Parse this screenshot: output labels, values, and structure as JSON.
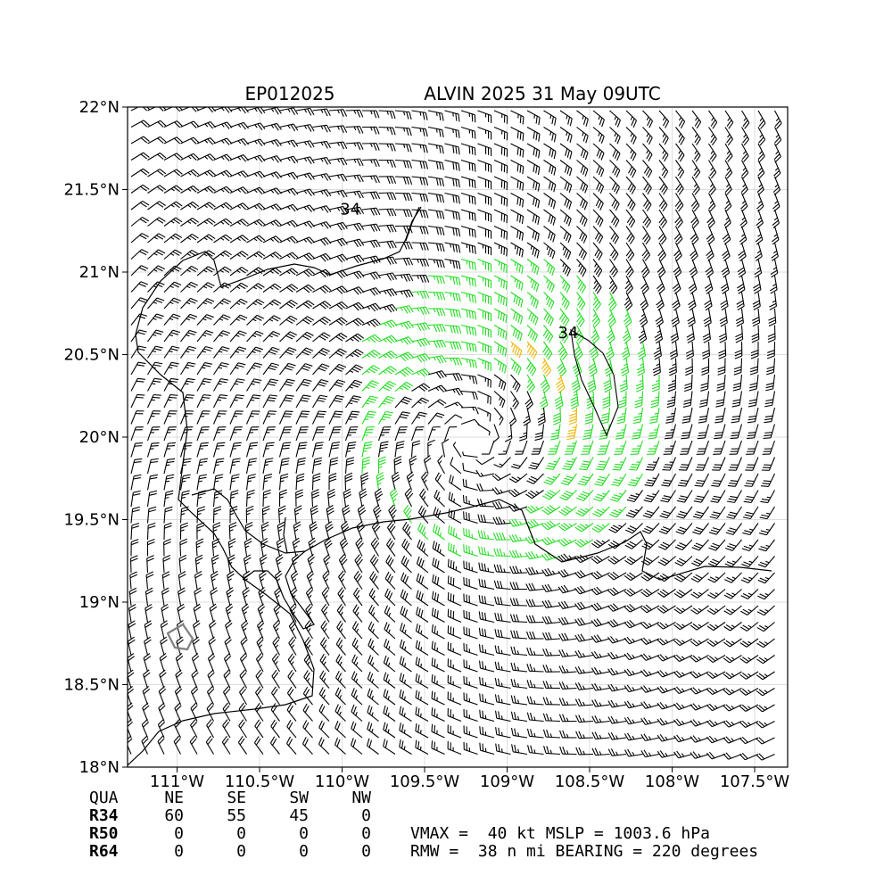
{
  "title": {
    "storm_id": "EP012025",
    "storm_info": "ALVIN 2025 31 May 09UTC"
  },
  "map": {
    "lon_range": [
      -111.3,
      -107.3
    ],
    "lat_range": [
      18.0,
      22.0
    ],
    "x_ticks": [
      {
        "lon": -111.0,
        "label": "111°W"
      },
      {
        "lon": -110.5,
        "label": "110.5°W"
      },
      {
        "lon": -110.0,
        "label": "110°W"
      },
      {
        "lon": -109.5,
        "label": "109.5°W"
      },
      {
        "lon": -109.0,
        "label": "109°W"
      },
      {
        "lon": -108.5,
        "label": "108.5°W"
      },
      {
        "lon": -108.0,
        "label": "108°W"
      },
      {
        "lon": -107.5,
        "label": "107.5°W"
      }
    ],
    "y_ticks": [
      {
        "lat": 18.0,
        "label": "18°N"
      },
      {
        "lat": 18.5,
        "label": "18.5°N"
      },
      {
        "lat": 19.0,
        "label": "19°N"
      },
      {
        "lat": 19.5,
        "label": "19.5°N"
      },
      {
        "lat": 20.0,
        "label": "20°N"
      },
      {
        "lat": 20.5,
        "label": "20.5°N"
      },
      {
        "lat": 21.0,
        "label": "21°N"
      },
      {
        "lat": 21.5,
        "label": "21.5°N"
      },
      {
        "lat": 22.0,
        "label": "22°N"
      }
    ],
    "grid": true,
    "contour_labels": [
      {
        "text": "34",
        "lon": -108.63,
        "lat": 20.6
      },
      {
        "text": "34",
        "lon": -109.95,
        "lat": 21.35
      }
    ],
    "colors": {
      "below_34kt": "#000000",
      "34_to_50kt": "#22dd22",
      "50_to_64kt": "#f0b400",
      "coast": "#000000",
      "island": "#808080",
      "grid": "#dddddd"
    },
    "center": {
      "lon": -109.2,
      "lat": 19.98
    },
    "vmax_kt": 40,
    "rmw_nmi": 38
  },
  "wind_radii": {
    "header": [
      "QUA",
      "NE",
      "SE",
      "SW",
      "NW"
    ],
    "rows": [
      {
        "label": "R34",
        "values": [
          "60",
          "55",
          "45",
          "0"
        ]
      },
      {
        "label": "R50",
        "values": [
          "0",
          "0",
          "0",
          "0"
        ]
      },
      {
        "label": "R64",
        "values": [
          "0",
          "0",
          "0",
          "0"
        ]
      }
    ]
  },
  "summary": {
    "line1": "VMAX =  40 kt MSLP = 1003.6 hPa",
    "line2": "RMW =  38 n mi BEARING = 220 degrees"
  }
}
